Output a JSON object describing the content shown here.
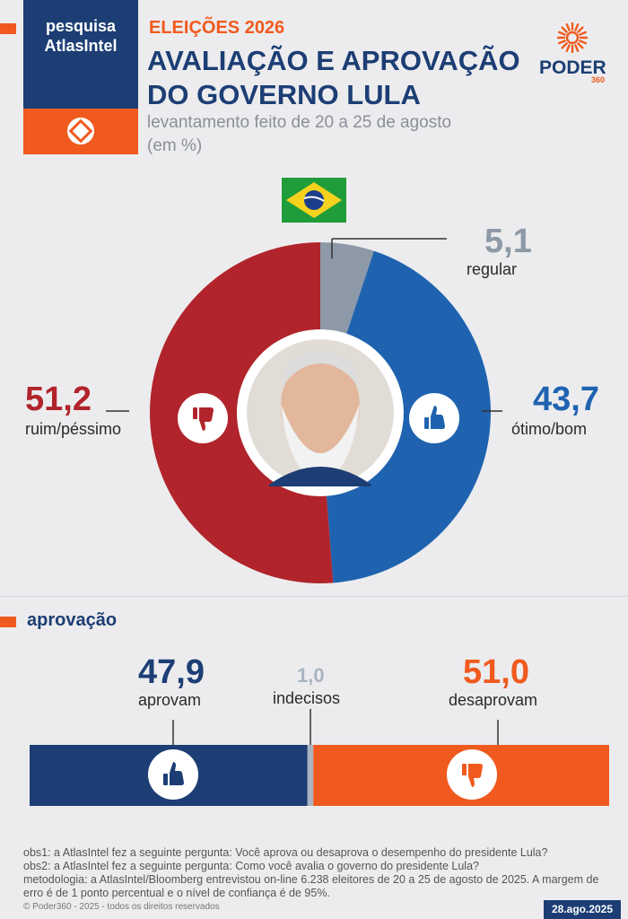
{
  "brand": {
    "line1": "pesquisa",
    "line2": "AtlasIntel"
  },
  "header": {
    "kicker": "ELEIÇÕES 2026",
    "title_line1": "AVALIAÇÃO E APROVAÇÃO",
    "title_line2": "DO GOVERNO LULA",
    "subtitle_line1": "levantamento feito de 20 a 25 de agosto",
    "subtitle_line2": "(em %)"
  },
  "logo": {
    "word": "PODER",
    "number": "360"
  },
  "chart_data": [
    {
      "type": "pie",
      "labels": [
        "regular",
        "ótimo/bom",
        "ruim/péssimo"
      ],
      "values": [
        5.1,
        43.7,
        51.2
      ],
      "value_labels": [
        "5,1",
        "43,7",
        "51,2"
      ],
      "colors": [
        "#8d99a6",
        "#1f63b0",
        "#b1242b"
      ],
      "donut": true
    },
    {
      "type": "bar",
      "title": "aprovação",
      "orientation": "horizontal-stacked",
      "labels": [
        "aprovam",
        "indecisos",
        "desaprovam"
      ],
      "values": [
        47.9,
        1.0,
        51.0
      ],
      "value_labels": [
        "47,9",
        "1,0",
        "51,0"
      ],
      "colors": [
        "#1c3e74",
        "#a9b4c1",
        "#f05a1e"
      ]
    }
  ],
  "notes": {
    "obs1": "obs1: a AtlasIntel fez a seguinte pergunta: Você aprova ou desaprova o desempenho do presidente Lula?",
    "obs2": "obs2: a AtlasIntel fez a seguinte pergunta: Como você avalia o governo do presidente Lula?",
    "methodology": "metodologia: a AtlasIntel/Bloomberg entrevistou on-line 6.238 eleitores de 20 a 25 de agosto de 2025. A margem de erro é de 1 ponto percentual e o nível de confiança é de 95%."
  },
  "footer": {
    "copyright": "© Poder360 - 2025 - todos os direitos reservados",
    "date": "28.ago.2025"
  },
  "icons": {
    "thumbs_up": "thumbs-up-icon",
    "thumbs_down": "thumbs-down-icon",
    "flag": "brazil-flag-icon",
    "portrait": "portrait-photo"
  }
}
